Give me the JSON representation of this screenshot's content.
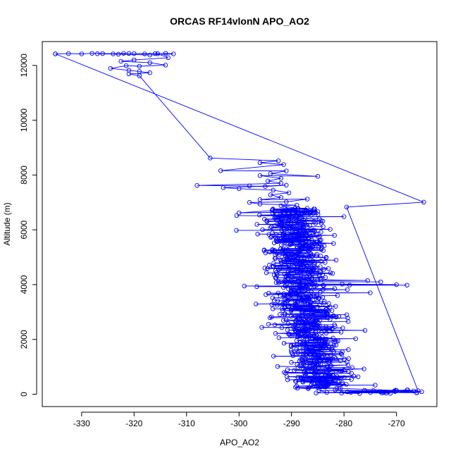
{
  "chart_data": {
    "type": "scatter",
    "title": "ORCAS RF14vlonN APO_AO2",
    "xlabel": "APO_AO2",
    "ylabel": "Altitude (m)",
    "xlim": [
      -337.5,
      -262.3
    ],
    "ylim": [
      -450,
      12870
    ],
    "xticks": [
      -330,
      -320,
      -310,
      -300,
      -290,
      -280,
      -270
    ],
    "yticks": [
      0,
      2000,
      4000,
      6000,
      8000,
      10000,
      12000
    ],
    "xtick_labels": [
      "-330",
      "-320",
      "-310",
      "-300",
      "-290",
      "-280",
      "-270"
    ],
    "ytick_labels": [
      "0",
      "2000",
      "4000",
      "6000",
      "8000",
      "10000",
      "12000"
    ],
    "grid": false,
    "legend": "none",
    "series_color": "#0000ff",
    "marker": "open-circle",
    "connected": true,
    "series": [
      {
        "points": [
          [
            -335.0,
            12420
          ],
          [
            -332.5,
            12430
          ],
          [
            -330.0,
            12420
          ],
          [
            -328.0,
            12440
          ],
          [
            -326.0,
            12430
          ],
          [
            -324.0,
            12420
          ],
          [
            -322.0,
            12440
          ],
          [
            -320.0,
            12430
          ],
          [
            -318.0,
            12420
          ],
          [
            -316.0,
            12430
          ],
          [
            -314.0,
            12440
          ],
          [
            -312.5,
            12420
          ],
          [
            -317.0,
            12380
          ],
          [
            -323.0,
            12410
          ],
          [
            -327.0,
            12425
          ],
          [
            -321.0,
            12435
          ],
          [
            -315.5,
            12425
          ],
          [
            -313.5,
            12280
          ],
          [
            -320.0,
            12200
          ],
          [
            -322.5,
            12150
          ],
          [
            -317.0,
            12100
          ],
          [
            -314.0,
            12010
          ],
          [
            -319.0,
            11970
          ],
          [
            -321.5,
            11990
          ],
          [
            -324.5,
            11890
          ],
          [
            -321.0,
            11820
          ],
          [
            -319.0,
            11780
          ],
          [
            -317.0,
            11730
          ],
          [
            -321.0,
            11690
          ],
          [
            -319.0,
            11620
          ],
          [
            -305.5,
            8620
          ],
          [
            -292.5,
            8520
          ],
          [
            -296.0,
            8450
          ],
          [
            -291.5,
            8380
          ],
          [
            -303.5,
            8160
          ],
          [
            -291.0,
            8150
          ],
          [
            -294.0,
            8050
          ],
          [
            -285.0,
            7950
          ],
          [
            -296.0,
            7980
          ],
          [
            -292.0,
            7880
          ],
          [
            -294.5,
            7780
          ],
          [
            -292.0,
            7700
          ],
          [
            -308.0,
            7620
          ],
          [
            -298.0,
            7600
          ],
          [
            -295.0,
            7580
          ],
          [
            -291.0,
            7630
          ],
          [
            -303.0,
            7540
          ],
          [
            -300.0,
            7500
          ],
          [
            -293.5,
            7450
          ],
          [
            -290.5,
            7350
          ],
          [
            -294.0,
            7280
          ],
          [
            -292.0,
            7180
          ],
          [
            -296.0,
            7100
          ],
          [
            -287.0,
            7120
          ],
          [
            -291.0,
            7020
          ],
          [
            -298.0,
            7000
          ],
          [
            -296.0,
            6940
          ],
          [
            -289.0,
            6900
          ],
          [
            -292.0,
            6880
          ],
          [
            -285.0,
            6660
          ],
          [
            -300.0,
            6620
          ],
          [
            -279.5,
            6830
          ],
          [
            -264.8,
            7010
          ],
          [
            -335.0,
            12420
          ]
        ]
      }
    ],
    "dense_band": {
      "altitude_range": [
        0,
        6800
      ],
      "point_count": 900,
      "apo_center_top": -290,
      "apo_center_bottom": -285,
      "apo_spread": 5.5,
      "surface_apo_range": [
        -287,
        -265
      ],
      "outliers": [
        [
          -275.5,
          4150
        ],
        [
          -268.0,
          3980
        ],
        [
          -300.5,
          5980
        ],
        [
          -273.0,
          4100
        ],
        [
          -270.0,
          4000
        ],
        [
          -299.0,
          3950
        ],
        [
          -275.0,
          3700
        ],
        [
          -280.0,
          6480
        ],
        [
          -282.0,
          5500
        ],
        [
          -276.0,
          2330
        ]
      ]
    }
  }
}
